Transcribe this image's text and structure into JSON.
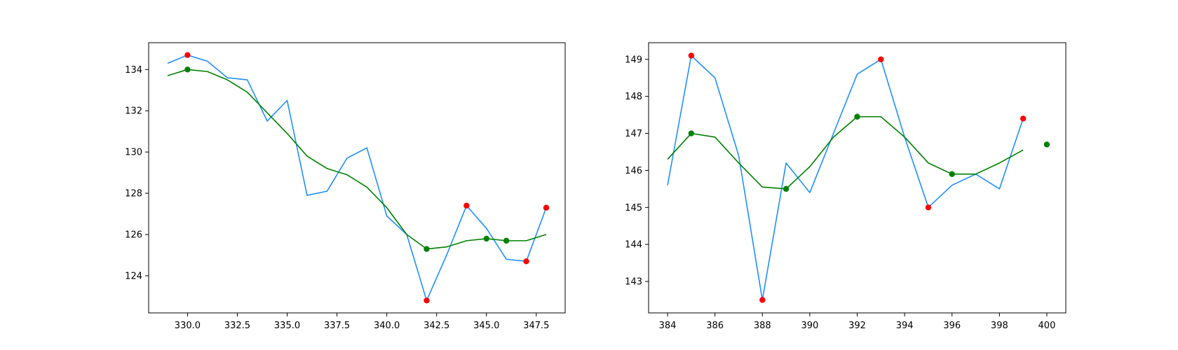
{
  "chart_data": [
    {
      "type": "line",
      "x": [
        329,
        330,
        331,
        332,
        333,
        334,
        335,
        336,
        337,
        338,
        339,
        340,
        341,
        342,
        343,
        344,
        345,
        346,
        347,
        348
      ],
      "series": [
        {
          "color": "#1e90ff",
          "values": [
            134.3,
            134.7,
            134.4,
            133.6,
            133.5,
            131.5,
            132.5,
            127.9,
            128.1,
            129.7,
            130.2,
            126.9,
            126.0,
            122.8,
            125.0,
            127.4,
            126.3,
            124.8,
            124.7,
            127.3
          ]
        },
        {
          "color": "#008000",
          "values": [
            133.7,
            134.0,
            133.9,
            133.5,
            132.9,
            131.9,
            130.9,
            129.8,
            129.2,
            128.9,
            128.3,
            127.3,
            126.0,
            125.3,
            125.4,
            125.7,
            125.8,
            125.7,
            125.7,
            126.0
          ]
        }
      ],
      "markers": [
        {
          "color": "#ff0000",
          "points": [
            [
              330,
              134.7
            ],
            [
              342,
              122.8
            ],
            [
              344,
              127.4
            ],
            [
              347,
              124.7
            ],
            [
              348,
              127.3
            ]
          ]
        },
        {
          "color": "#008000",
          "points": [
            [
              330,
              134.0
            ],
            [
              342,
              125.3
            ],
            [
              345,
              125.8
            ],
            [
              346,
              125.7
            ]
          ]
        }
      ],
      "xlim": [
        328.05,
        348.95
      ],
      "ylim": [
        122.2,
        135.3
      ],
      "xticks": [
        330,
        332.5,
        335,
        337.5,
        340,
        342.5,
        345,
        347.5
      ],
      "xtick_labels": [
        "330.0",
        "332.5",
        "335.0",
        "337.5",
        "340.0",
        "342.5",
        "345.0",
        "347.5"
      ],
      "yticks": [
        124,
        126,
        128,
        130,
        132,
        134
      ],
      "ytick_labels": [
        "124",
        "126",
        "128",
        "130",
        "132",
        "134"
      ],
      "title": "",
      "xlabel": "",
      "ylabel": "",
      "grid": false
    },
    {
      "type": "line",
      "x": [
        384,
        385,
        386,
        387,
        388,
        389,
        390,
        391,
        392,
        393,
        394,
        395,
        396,
        397,
        398,
        399
      ],
      "series": [
        {
          "color": "#1e90ff",
          "values": [
            145.6,
            149.1,
            148.5,
            146.4,
            142.5,
            146.2,
            145.4,
            147.0,
            148.6,
            149.0,
            146.9,
            145.0,
            145.6,
            145.9,
            145.5,
            147.4
          ]
        },
        {
          "color": "#008000",
          "values": [
            146.3,
            147.0,
            146.9,
            146.2,
            145.55,
            145.5,
            146.1,
            146.9,
            147.45,
            147.45,
            146.9,
            146.2,
            145.9,
            145.9,
            146.2,
            146.55
          ]
        }
      ],
      "markers": [
        {
          "color": "#ff0000",
          "points": [
            [
              385,
              149.1
            ],
            [
              388,
              142.5
            ],
            [
              393,
              149.0
            ],
            [
              395,
              145.0
            ],
            [
              399,
              147.4
            ]
          ]
        },
        {
          "color": "#008000",
          "points": [
            [
              385,
              147.0
            ],
            [
              389,
              145.5
            ],
            [
              392,
              147.45
            ],
            [
              396,
              145.9
            ],
            [
              400,
              146.7
            ]
          ]
        }
      ],
      "xlim": [
        383.2,
        400.8
      ],
      "ylim": [
        142.15,
        149.45
      ],
      "xticks": [
        384,
        386,
        388,
        390,
        392,
        394,
        396,
        398,
        400
      ],
      "xtick_labels": [
        "384",
        "386",
        "388",
        "390",
        "392",
        "394",
        "396",
        "398",
        "400"
      ],
      "yticks": [
        143,
        144,
        145,
        146,
        147,
        148,
        149
      ],
      "ytick_labels": [
        "143",
        "144",
        "145",
        "146",
        "147",
        "148",
        "149"
      ],
      "title": "",
      "xlabel": "",
      "ylabel": "",
      "grid": false
    }
  ]
}
